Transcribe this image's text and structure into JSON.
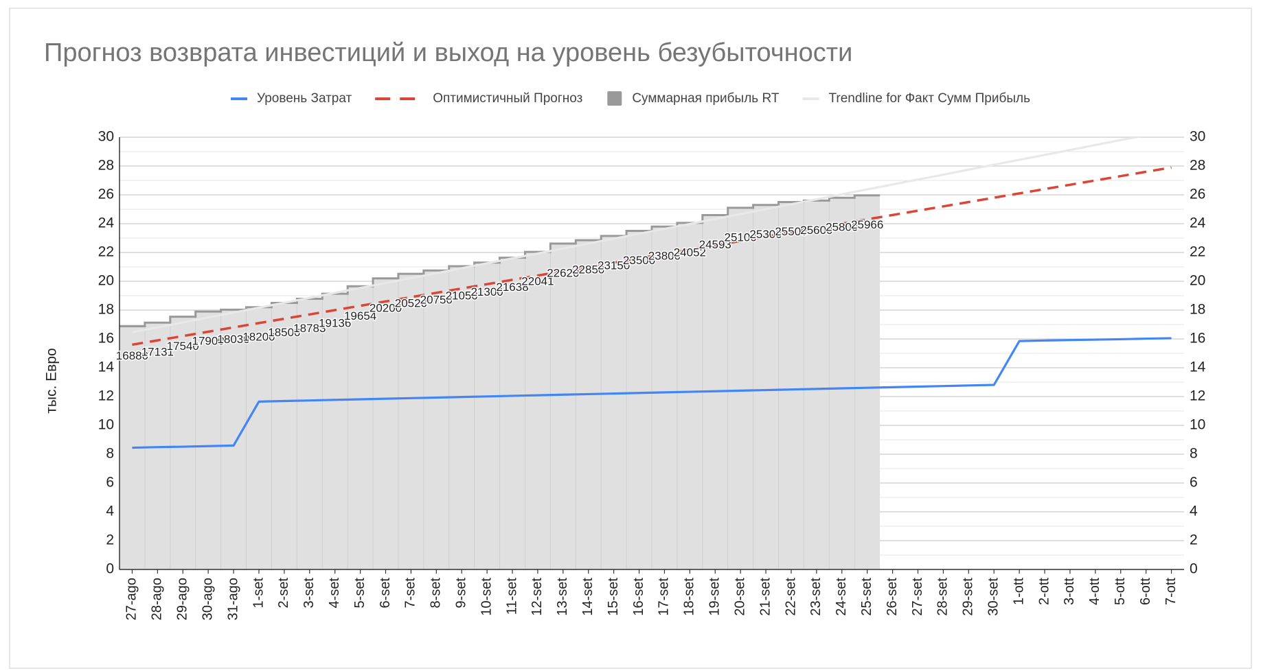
{
  "chart_data": {
    "type": "line",
    "title": "Прогноз возврата инвестиций и выход на уровень безубыточности",
    "y_label": "тыс. Евро",
    "categories": [
      "27-ago",
      "28-ago",
      "29-ago",
      "30-ago",
      "31-ago",
      "1-set",
      "2-set",
      "3-set",
      "4-set",
      "5-set",
      "6-set",
      "7-set",
      "8-set",
      "9-set",
      "10-set",
      "11-set",
      "12-set",
      "13-set",
      "14-set",
      "15-set",
      "16-set",
      "17-set",
      "18-set",
      "19-set",
      "20-set",
      "21-set",
      "22-set",
      "23-set",
      "24-set",
      "25-set",
      "26-set",
      "27-set",
      "28-set",
      "29-set",
      "30-set",
      "1-ott",
      "2-ott",
      "3-ott",
      "4-ott",
      "5-ott",
      "6-ott",
      "7-ott"
    ],
    "ylim": [
      0,
      30
    ],
    "yticks": [
      0,
      2,
      4,
      6,
      8,
      10,
      12,
      14,
      16,
      18,
      20,
      22,
      24,
      26,
      28,
      30
    ],
    "y2lim": [
      0,
      30
    ],
    "y2ticks": [
      0,
      2,
      4,
      6,
      8,
      10,
      12,
      14,
      16,
      18,
      20,
      22,
      24,
      26,
      28,
      30
    ],
    "grid": true,
    "legend": "top",
    "series": [
      {
        "name": "Уровень Затрат",
        "color": "#4285f4",
        "style": "solid",
        "values": [
          8.45,
          8.49,
          8.52,
          8.56,
          8.6,
          11.65,
          11.69,
          11.73,
          11.77,
          11.81,
          11.85,
          11.89,
          11.93,
          11.97,
          12.01,
          12.05,
          12.09,
          12.13,
          12.17,
          12.21,
          12.25,
          12.29,
          12.33,
          12.37,
          12.41,
          12.45,
          12.49,
          12.53,
          12.57,
          12.61,
          12.65,
          12.69,
          12.73,
          12.77,
          12.81,
          15.85,
          15.89,
          15.92,
          15.95,
          15.98,
          16.02,
          16.05
        ]
      },
      {
        "name": "Оптимистичный Прогноз",
        "color": "#db4437",
        "style": "dashed",
        "values": [
          15.6,
          15.9,
          16.2,
          16.5,
          16.8,
          17.1,
          17.4,
          17.7,
          18.0,
          18.3,
          18.6,
          18.9,
          19.2,
          19.5,
          19.8,
          20.1,
          20.4,
          20.7,
          21.0,
          21.3,
          21.6,
          21.9,
          22.2,
          22.5,
          22.8,
          23.1,
          23.4,
          23.7,
          24.0,
          24.3,
          24.6,
          24.9,
          25.2,
          25.5,
          25.8,
          26.1,
          26.4,
          26.7,
          27.0,
          27.3,
          27.6,
          27.9
        ]
      },
      {
        "name": "Суммарная прибыль RT",
        "color": "#999999",
        "style": "area",
        "values": [
          16.88,
          17.131,
          17.54,
          17.9,
          18.03,
          18.2,
          18.5,
          18.783,
          19.136,
          19.654,
          20.2,
          20.52,
          20.75,
          21.05,
          21.3,
          21.638,
          22.041,
          22.62,
          22.85,
          23.15,
          23.5,
          23.8,
          24.052,
          24.593,
          25.1,
          25.3,
          25.5,
          25.6,
          25.8,
          25.966,
          null,
          null,
          null,
          null,
          null,
          null,
          null,
          null,
          null,
          null,
          null,
          null
        ],
        "value_labels": [
          "16880",
          "17131",
          "17540",
          "17900",
          "18030",
          "18200",
          "18500",
          "18783",
          "19136",
          "19654",
          "20200",
          "20520",
          "20750",
          "21050",
          "21300",
          "21638",
          "22041",
          "22620",
          "22850",
          "23150",
          "23500",
          "23800",
          "24052",
          "24593",
          "25100",
          "25300",
          "25500",
          "25600",
          "25800",
          "25966",
          null,
          null,
          null,
          null,
          null,
          null,
          null,
          null,
          null,
          null,
          null,
          null
        ]
      },
      {
        "name": "Trendline for Факт Сумм Прибыль",
        "color": "#e8e8e8",
        "style": "solid",
        "values": [
          16.46,
          16.8,
          17.14,
          17.49,
          17.83,
          18.17,
          18.51,
          18.85,
          19.2,
          19.54,
          19.88,
          20.22,
          20.56,
          20.91,
          21.25,
          21.59,
          21.93,
          22.27,
          22.62,
          22.96,
          23.3,
          23.64,
          23.98,
          24.33,
          24.67,
          25.01,
          25.35,
          25.69,
          26.04,
          26.38,
          26.72,
          27.06,
          27.4,
          27.75,
          28.09,
          28.43,
          28.77,
          29.11,
          29.46,
          29.8,
          30.14,
          30.48
        ]
      }
    ]
  }
}
